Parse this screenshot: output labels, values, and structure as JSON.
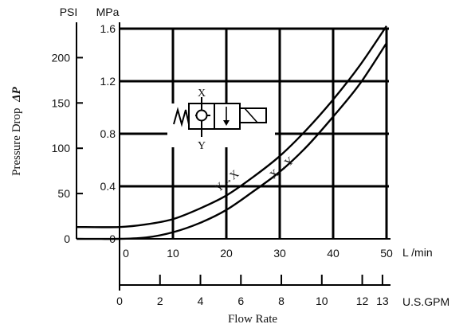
{
  "chart_data": {
    "type": "line",
    "title": "",
    "xlabel": "Flow Rate",
    "ylabel": "Pressure Drop",
    "ylabel_symbol": "ΔP",
    "x_primary": {
      "unit": "L /min",
      "ticks": [
        "0",
        "10",
        "20",
        "30",
        "40",
        "50"
      ],
      "range": [
        0,
        50
      ]
    },
    "x_secondary": {
      "unit": "U.S.GPM",
      "ticks": [
        "0",
        "2",
        "4",
        "6",
        "8",
        "10",
        "12",
        "13"
      ],
      "range": [
        0,
        13.2
      ]
    },
    "y_primary": {
      "unit": "MPa",
      "ticks": [
        "0",
        "0.4",
        "0.8",
        "1.2",
        "1.6"
      ],
      "range": [
        0,
        1.6
      ]
    },
    "y_secondary": {
      "unit": "PSI",
      "ticks": [
        "0",
        "50",
        "100",
        "150",
        "200"
      ],
      "range": [
        0,
        232
      ]
    },
    "grid": true,
    "series": [
      {
        "name": "Y→X",
        "x": [
          0,
          5,
          10,
          15,
          20,
          25,
          30,
          35,
          40,
          45,
          50
        ],
        "y": [
          0.09,
          0.11,
          0.15,
          0.23,
          0.33,
          0.47,
          0.63,
          0.83,
          1.06,
          1.32,
          1.62
        ]
      },
      {
        "name": "X→Y",
        "x": [
          0,
          5,
          10,
          15,
          20,
          25,
          30,
          35,
          40,
          45,
          50
        ],
        "y": [
          0.0,
          0.01,
          0.05,
          0.12,
          0.22,
          0.36,
          0.51,
          0.7,
          0.93,
          1.18,
          1.49
        ]
      }
    ],
    "symbol_labels": {
      "top": "X",
      "bottom": "Y"
    }
  }
}
